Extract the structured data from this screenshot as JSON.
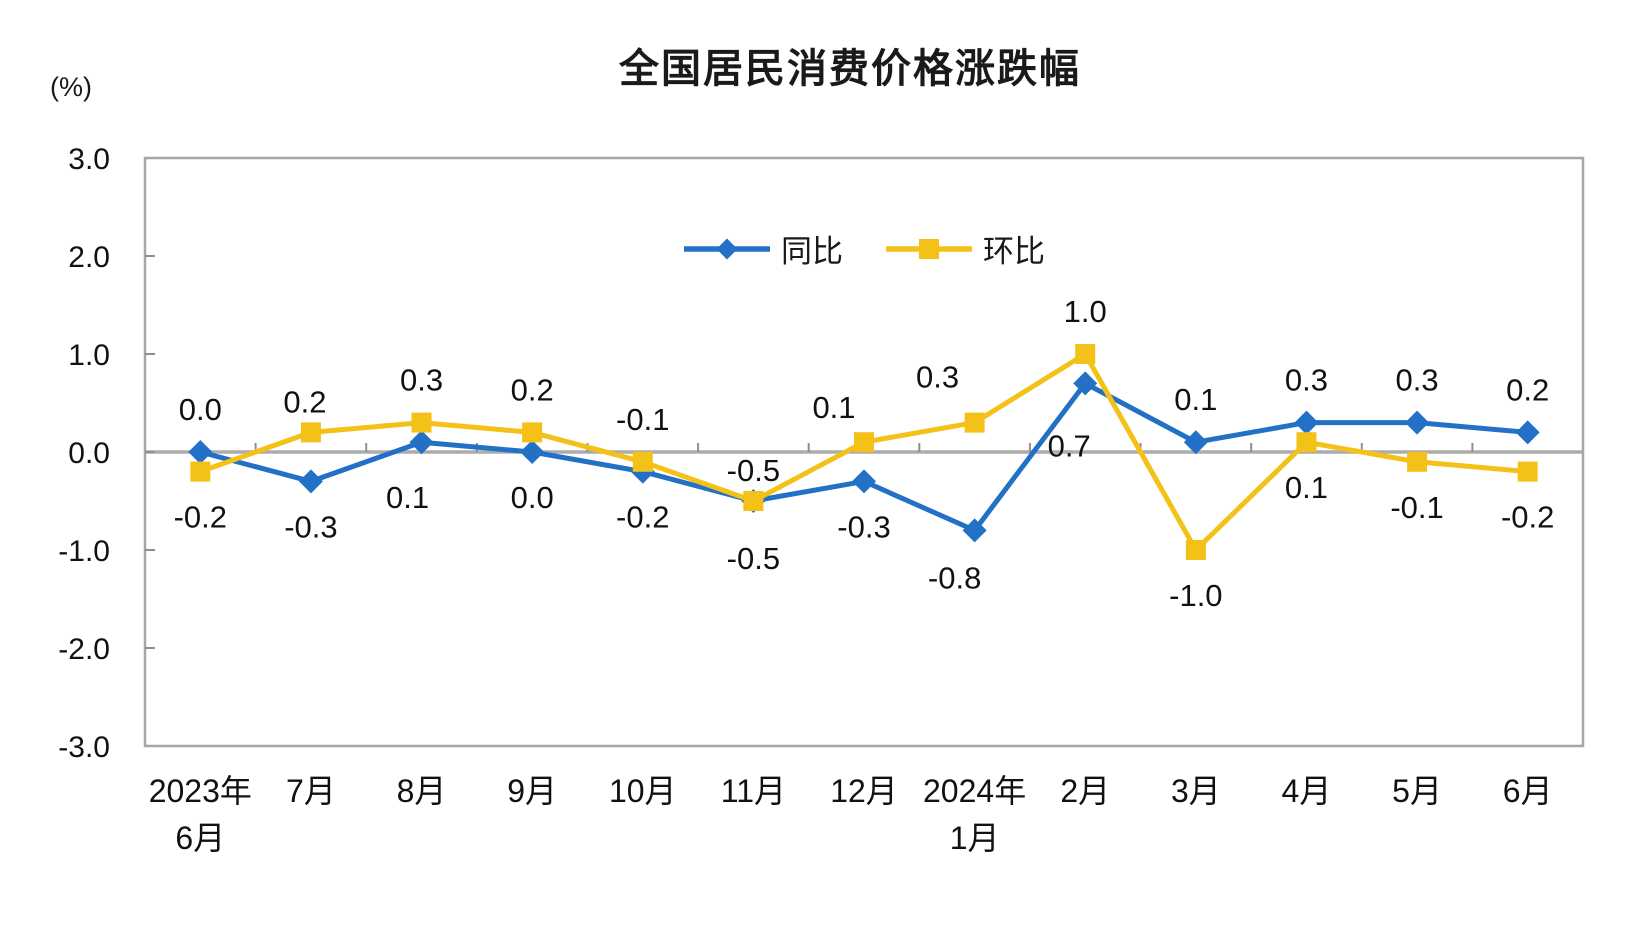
{
  "title": "全国居民消费价格涨跌幅",
  "unit_label": "(%)",
  "colors": {
    "tongbi": "#2271C6",
    "huanbi": "#F3C117",
    "zero_line": "#ACACAC",
    "plot_border": "#A6A6A6",
    "tick": "#8F8F8F",
    "text": "#111111"
  },
  "legend": {
    "items": [
      {
        "key": "tongbi",
        "label": "同比",
        "marker": "diamond"
      },
      {
        "key": "huanbi",
        "label": "环比",
        "marker": "square"
      }
    ]
  },
  "chart_data": {
    "type": "line",
    "title": "全国居民消费价格涨跌幅",
    "ylabel": "(%)",
    "ylim": [
      -3.0,
      3.0
    ],
    "ytick_interval": 1.0,
    "ytick_values": [
      3,
      2,
      1,
      0,
      -1,
      -2,
      -3
    ],
    "ytick_labels": [
      "3.0",
      "2.0",
      "1.0",
      "0.0",
      "-1.0",
      "-2.0",
      "-3.0"
    ],
    "grid": "zero-line-only",
    "legend_position": "inside-top-center",
    "categories": [
      [
        "2023年",
        "6月"
      ],
      [
        "7月"
      ],
      [
        "8月"
      ],
      [
        "9月"
      ],
      [
        "10月"
      ],
      [
        "11月"
      ],
      [
        "12月"
      ],
      [
        "2024年",
        "1月"
      ],
      [
        "2月"
      ],
      [
        "3月"
      ],
      [
        "4月"
      ],
      [
        "5月"
      ],
      [
        "6月"
      ]
    ],
    "series": [
      {
        "key": "tongbi",
        "name": "同比",
        "marker": "diamond",
        "color_key": "tongbi",
        "values": [
          0.0,
          -0.3,
          0.1,
          0.0,
          -0.2,
          -0.5,
          -0.3,
          -0.8,
          0.7,
          0.1,
          0.3,
          0.3,
          0.2
        ],
        "label_side": [
          "above",
          "below",
          "below",
          "below",
          "below",
          "below",
          "below",
          "below",
          "below",
          "above",
          "above",
          "above",
          "above"
        ],
        "label_nudge": {
          "2": [
            -14,
            10
          ],
          "5": [
            0,
            12
          ],
          "7": [
            -20,
            2
          ],
          "8": [
            -16,
            17
          ]
        }
      },
      {
        "key": "huanbi",
        "name": "环比",
        "marker": "square",
        "color_key": "huanbi",
        "values": [
          -0.2,
          0.2,
          0.3,
          0.2,
          -0.1,
          -0.5,
          0.1,
          0.3,
          1.0,
          -1.0,
          0.1,
          -0.1,
          -0.2
        ],
        "label_side": [
          "below",
          "above",
          "above",
          "above",
          "above",
          "above",
          "above",
          "above",
          "above",
          "below",
          "below",
          "below",
          "below"
        ],
        "label_nudge": {
          "1": [
            -6,
            12
          ],
          "5": [
            0,
            12
          ],
          "6": [
            -30,
            8
          ],
          "7": [
            -37,
            -3
          ]
        }
      }
    ]
  }
}
